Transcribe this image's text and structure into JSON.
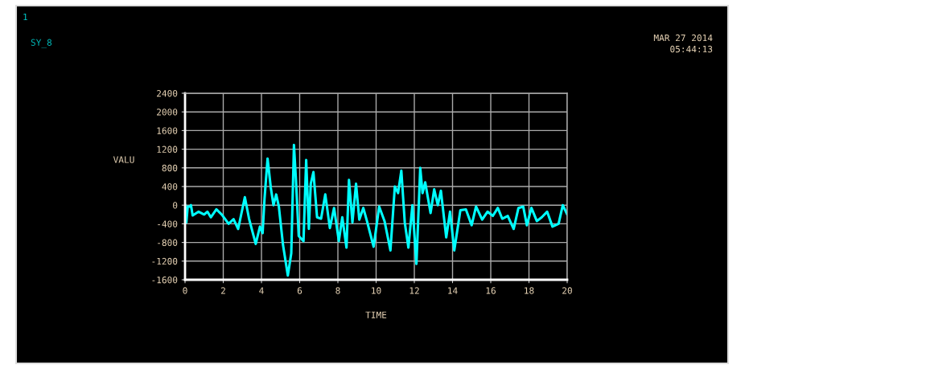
{
  "chart_data": {
    "type": "line",
    "xlabel": "TIME",
    "ylabel": "VALU",
    "xlim": [
      0,
      20
    ],
    "ylim": [
      -1600,
      2400
    ],
    "xticks": [
      0,
      2,
      4,
      6,
      8,
      10,
      12,
      14,
      16,
      18,
      20
    ],
    "yticks": [
      -1600,
      -1200,
      -800,
      -400,
      0,
      400,
      800,
      1200,
      1600,
      2000,
      2400
    ],
    "grid": true,
    "legend": false,
    "annotations": [
      "1",
      "SY_8",
      "MAR 27 2014",
      "05:44:13"
    ],
    "series": [
      {
        "color": "#00ffff",
        "x": [
          0,
          0.07,
          0.14,
          0.26,
          0.31,
          0.4,
          0.71,
          1.0,
          1.17,
          1.35,
          1.64,
          1.92,
          2.28,
          2.54,
          2.78,
          3.13,
          3.35,
          3.7,
          3.92,
          4.06,
          4.16,
          4.32,
          4.49,
          4.63,
          4.77,
          4.91,
          5.13,
          5.38,
          5.56,
          5.7,
          5.8,
          5.95,
          6.2,
          6.34,
          6.48,
          6.58,
          6.72,
          6.91,
          7.12,
          7.34,
          7.58,
          7.8,
          8.05,
          8.23,
          8.45,
          8.58,
          8.76,
          8.95,
          9.12,
          9.33,
          9.52,
          9.87,
          10.16,
          10.44,
          10.75,
          10.98,
          11.15,
          11.32,
          11.5,
          11.69,
          11.9,
          12.11,
          12.31,
          12.43,
          12.57,
          12.85,
          13.04,
          13.23,
          13.39,
          13.67,
          13.87,
          14.09,
          14.41,
          14.7,
          15.0,
          15.23,
          15.55,
          15.83,
          16.11,
          16.37,
          16.6,
          16.89,
          17.2,
          17.45,
          17.7,
          17.89,
          18.13,
          18.41,
          18.67,
          18.95,
          19.23,
          19.55,
          19.77,
          20.0
        ],
        "values": [
          0,
          -370,
          -30,
          -30,
          0,
          -220,
          -140,
          -200,
          -140,
          -260,
          -90,
          -200,
          -400,
          -300,
          -510,
          170,
          -290,
          -830,
          -460,
          -600,
          140,
          1000,
          370,
          0,
          230,
          -30,
          -860,
          -1510,
          -1030,
          1290,
          570,
          -660,
          -770,
          970,
          -510,
          460,
          710,
          -260,
          -290,
          230,
          -490,
          -60,
          -770,
          -260,
          -910,
          540,
          -370,
          460,
          -310,
          -60,
          -340,
          -890,
          -30,
          -340,
          -970,
          400,
          260,
          740,
          -370,
          -910,
          0,
          -1260,
          800,
          260,
          490,
          -170,
          340,
          0,
          310,
          -690,
          -140,
          -970,
          -110,
          -90,
          -430,
          -30,
          -310,
          -140,
          -230,
          -60,
          -290,
          -230,
          -510,
          -60,
          -30,
          -430,
          -60,
          -340,
          -260,
          -140,
          -460,
          -400,
          0,
          -200
        ]
      }
    ]
  }
}
